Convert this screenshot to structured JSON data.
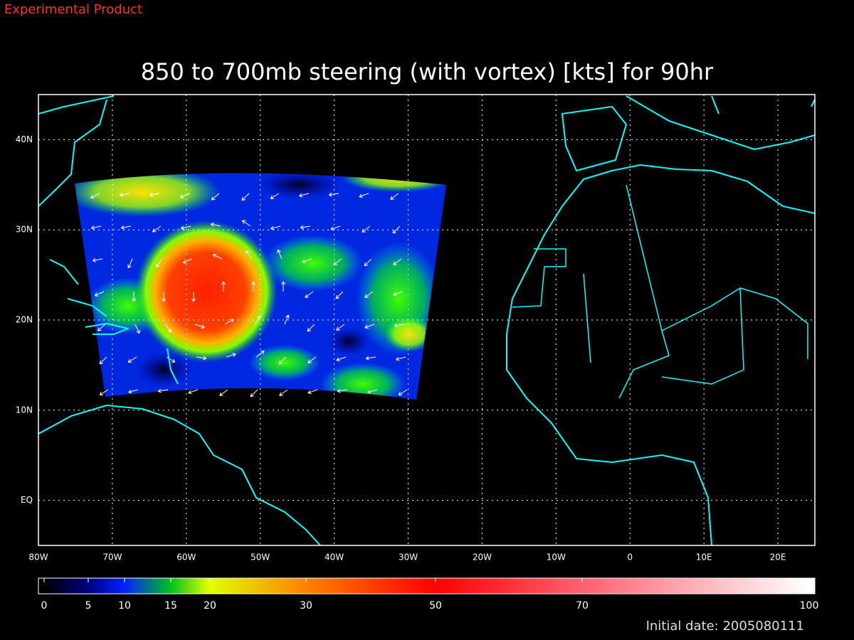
{
  "header": {
    "label": "Experimental Product"
  },
  "title": "850 to 700mb steering (with vortex) [kts] for 90hr",
  "map": {
    "xlim": [
      -80,
      25
    ],
    "ylim": [
      -5,
      45
    ],
    "xticks": [
      {
        "value": -80,
        "label": "80W"
      },
      {
        "value": -70,
        "label": "70W"
      },
      {
        "value": -60,
        "label": "60W"
      },
      {
        "value": -50,
        "label": "50W"
      },
      {
        "value": -40,
        "label": "40W"
      },
      {
        "value": -30,
        "label": "30W"
      },
      {
        "value": -20,
        "label": "20W"
      },
      {
        "value": -10,
        "label": "10W"
      },
      0,
      {
        "value": 10,
        "label": "10E"
      },
      {
        "value": 20,
        "label": "20E"
      }
    ],
    "yticks": [
      {
        "value": 0,
        "label": "EQ"
      },
      {
        "value": 10,
        "label": "10N"
      },
      {
        "value": 20,
        "label": "20N"
      },
      {
        "value": 30,
        "label": "30N"
      },
      {
        "value": 40,
        "label": "40N"
      }
    ],
    "grid": true
  },
  "colorbar": {
    "ticks": [
      0,
      5,
      10,
      15,
      20,
      30,
      50,
      70,
      100
    ]
  },
  "footer": {
    "label": "Initial date: 2005080111"
  }
}
